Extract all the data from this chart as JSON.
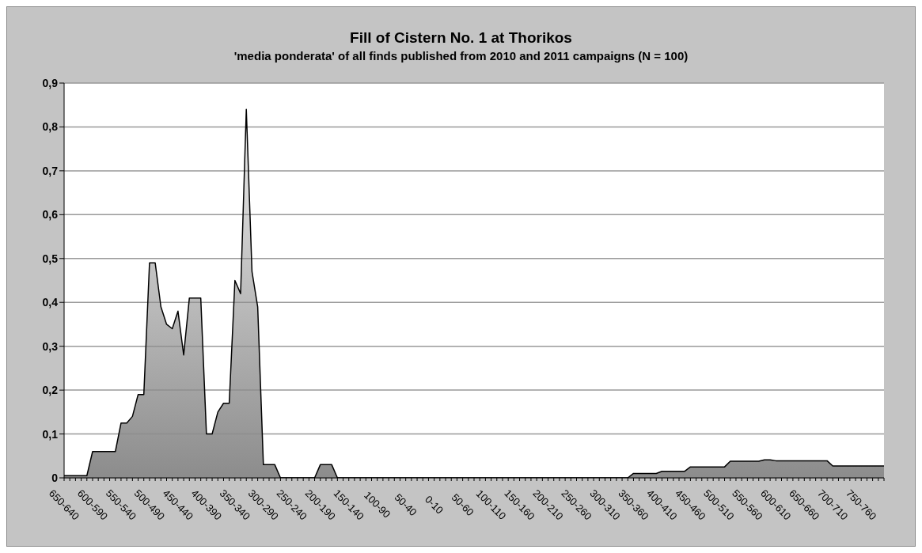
{
  "chart_data": {
    "type": "area",
    "title": "Fill of Cistern No. 1 at Thorikos",
    "subtitle": "'media ponderata' of all finds published from 2010 and 2011 campaigns (N = 100)",
    "categories": [
      "650-640",
      null,
      null,
      null,
      null,
      "600-590",
      null,
      null,
      null,
      null,
      "550-540",
      null,
      null,
      null,
      null,
      "500-490",
      null,
      null,
      null,
      null,
      "450-440",
      null,
      null,
      null,
      null,
      "400-390",
      null,
      null,
      null,
      null,
      "350-340",
      null,
      null,
      null,
      null,
      "300-290",
      null,
      null,
      null,
      null,
      "250-240",
      null,
      null,
      null,
      null,
      "200-190",
      null,
      null,
      null,
      null,
      "150-140",
      null,
      null,
      null,
      null,
      "100-90",
      null,
      null,
      null,
      null,
      "50-40",
      null,
      null,
      null,
      null,
      "0-10",
      null,
      null,
      null,
      null,
      "50-60",
      null,
      null,
      null,
      null,
      "100-110",
      null,
      null,
      null,
      null,
      "150-160",
      null,
      null,
      null,
      null,
      "200-210",
      null,
      null,
      null,
      null,
      "250-260",
      null,
      null,
      null,
      null,
      "300-310",
      null,
      null,
      null,
      null,
      "350-360",
      null,
      null,
      null,
      null,
      "400-410",
      null,
      null,
      null,
      null,
      "450-460",
      null,
      null,
      null,
      null,
      "500-510",
      null,
      null,
      null,
      null,
      "550-560",
      null,
      null,
      null,
      null,
      "600-610",
      null,
      null,
      null,
      null,
      "650-660",
      null,
      null,
      null,
      null,
      "700-710",
      null,
      null,
      null,
      null,
      "750-760",
      null,
      null,
      null,
      null
    ],
    "series": [
      {
        "color": "#8c8c8c",
        "values": [
          0.005,
          0.005,
          0.005,
          0.005,
          0.005,
          0.06,
          0.06,
          0.06,
          0.06,
          0.06,
          0.125,
          0.125,
          0.14,
          0.19,
          0.19,
          0.49,
          0.49,
          0.39,
          0.35,
          0.34,
          0.38,
          0.28,
          0.41,
          0.41,
          0.41,
          0.1,
          0.1,
          0.15,
          0.17,
          0.17,
          0.45,
          0.42,
          0.84,
          0.47,
          0.39,
          0.03,
          0.03,
          0.03,
          0,
          0,
          0,
          0,
          0,
          0,
          0,
          0.03,
          0.03,
          0.03,
          0,
          0,
          0,
          0,
          0,
          0,
          0,
          0,
          0,
          0,
          0,
          0,
          0,
          0,
          0,
          0,
          0,
          0,
          0,
          0,
          0,
          0,
          0,
          0,
          0,
          0,
          0,
          0,
          0,
          0,
          0,
          0,
          0,
          0,
          0,
          0,
          0,
          0,
          0,
          0,
          0,
          0,
          0,
          0,
          0,
          0,
          0,
          0,
          0,
          0,
          0,
          0,
          0.01,
          0.01,
          0.01,
          0.01,
          0.01,
          0.015,
          0.015,
          0.015,
          0.015,
          0.015,
          0.025,
          0.025,
          0.025,
          0.025,
          0.025,
          0.025,
          0.025,
          0.038,
          0.038,
          0.038,
          0.038,
          0.038,
          0.038,
          0.041,
          0.041,
          0.039,
          0.039,
          0.039,
          0.039,
          0.039,
          0.039,
          0.039,
          0.039,
          0.039,
          0.039,
          0.027,
          0.027,
          0.027,
          0.027,
          0.027,
          0.027,
          0.027,
          0.027,
          0.027,
          0.027
        ]
      }
    ],
    "ylim": [
      0,
      0.9
    ],
    "yticks": [
      0,
      {
        "value": 0.1,
        "label": "0,1"
      },
      {
        "value": 0.2,
        "label": "0,2"
      },
      {
        "value": 0.3,
        "label": "0,3"
      },
      {
        "value": 0.4,
        "label": "0,4"
      },
      {
        "value": 0.5,
        "label": "0,5"
      },
      {
        "value": 0.6,
        "label": "0,6"
      },
      {
        "value": 0.7,
        "label": "0,7"
      },
      {
        "value": 0.8,
        "label": "0,8"
      },
      {
        "value": 0.9,
        "label": "0,9"
      }
    ],
    "grid": "y"
  }
}
